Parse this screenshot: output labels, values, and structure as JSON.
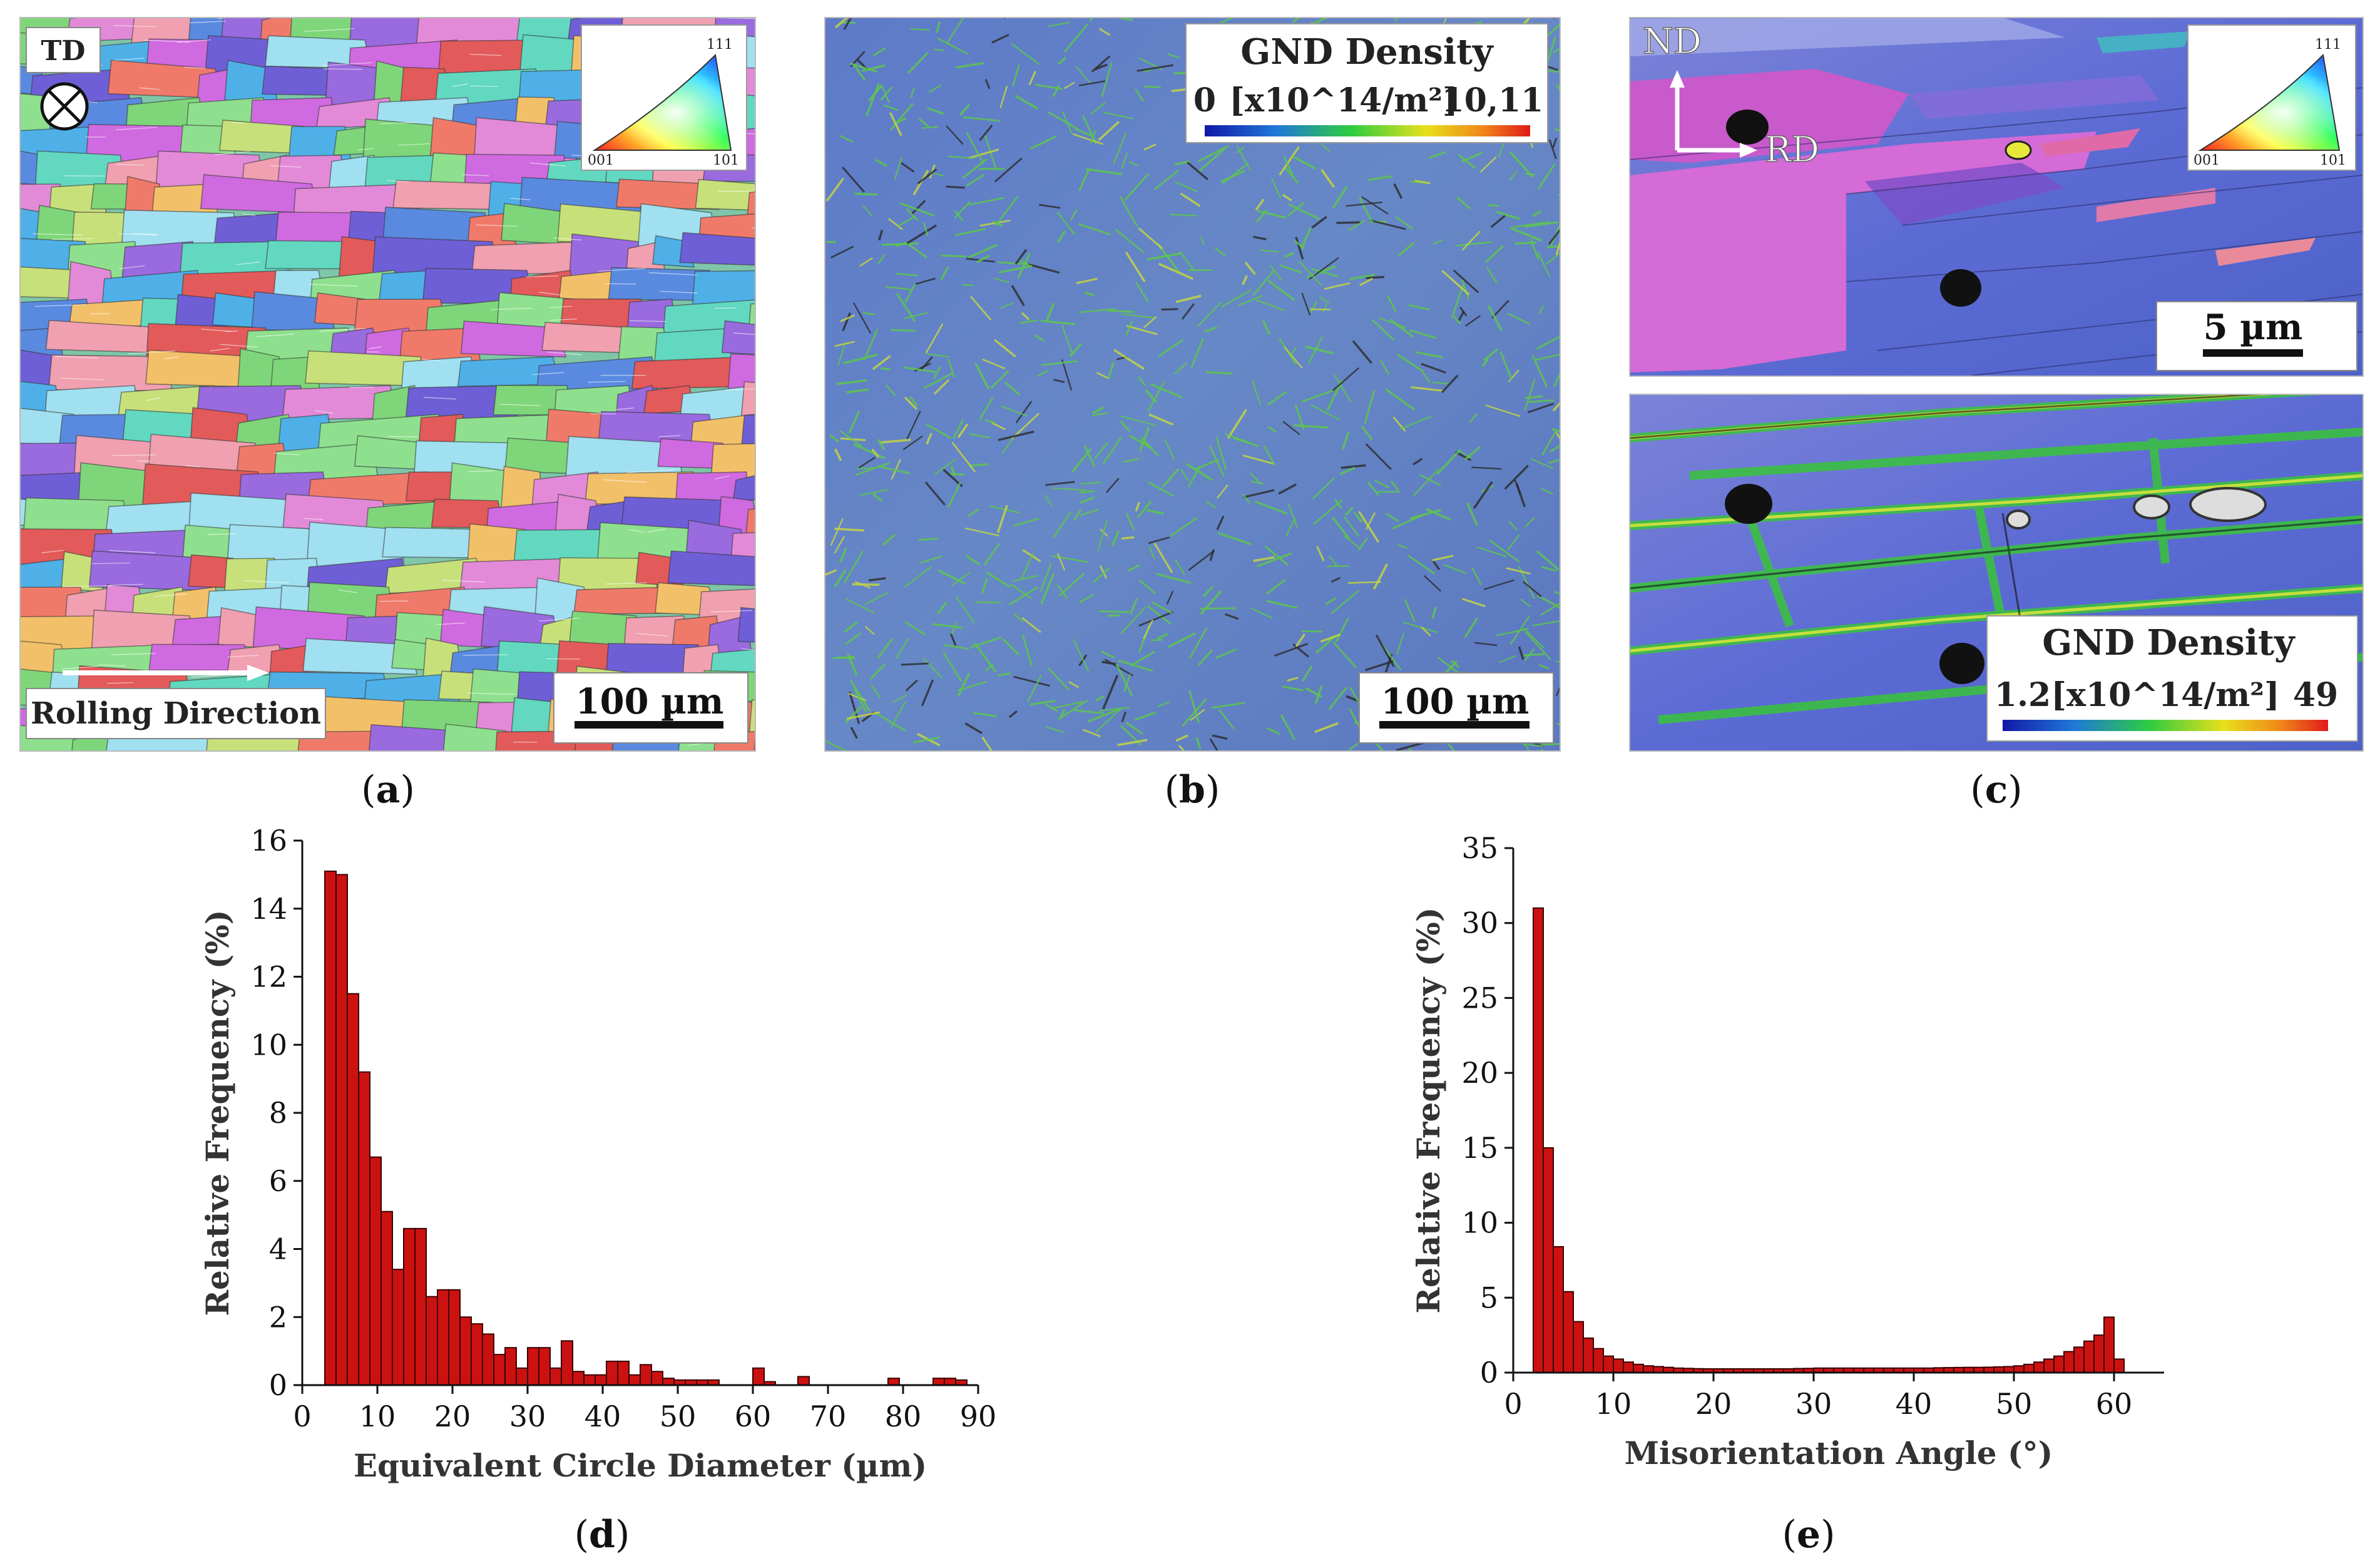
{
  "panels": {
    "a": {
      "caption_letter": "a",
      "td_label": "TD",
      "rolling_label": "Rolling Direction",
      "scale_label": "100 µm",
      "ipf_legend": {
        "top": "111",
        "left": "001",
        "right": "101"
      }
    },
    "b": {
      "caption_letter": "b",
      "legend_title": "GND Density",
      "legend_min": "0",
      "legend_unit": "[x10^14/m²]",
      "legend_max": "10,11",
      "scale_label": "100 µm"
    },
    "c": {
      "caption_letter": "c",
      "nd_label": "ND",
      "rd_label": "RD",
      "scale_label": "5 µm",
      "ipf_legend": {
        "top": "111",
        "left": "001",
        "right": "101"
      },
      "legend_title": "GND Density",
      "legend_min": "1.2",
      "legend_unit": "[x10^14/m²]",
      "legend_max": "49"
    },
    "d": {
      "caption_letter": "d"
    },
    "e": {
      "caption_letter": "e"
    }
  },
  "colors": {
    "bar_fill": "#cc1111",
    "bar_stroke": "#3a0000",
    "gnd_low": "#1530b0",
    "gnd_mid": "#33cc33",
    "gnd_high": "#e61c1c",
    "map_base_blue": "#5a6cd6"
  },
  "chart_data": [
    {
      "type": "bar",
      "id": "d",
      "title": "",
      "xlabel": "Equivalent Circle Diameter (µm)",
      "ylabel": "Relative Frequency (%)",
      "xlim": [
        0,
        90
      ],
      "ylim": [
        0,
        16
      ],
      "xticks": [
        0,
        10,
        20,
        30,
        40,
        50,
        60,
        70,
        80,
        90
      ],
      "yticks": [
        0,
        2,
        4,
        6,
        8,
        10,
        12,
        14,
        16
      ],
      "bin_width": 1.5,
      "x": [
        3.75,
        5.25,
        6.75,
        8.25,
        9.75,
        11.25,
        12.75,
        14.25,
        15.75,
        17.25,
        18.75,
        20.25,
        21.75,
        23.25,
        24.75,
        26.25,
        27.75,
        29.25,
        30.75,
        32.25,
        33.75,
        35.25,
        36.75,
        38.25,
        39.75,
        41.25,
        42.75,
        44.25,
        45.75,
        47.25,
        48.75,
        50.25,
        51.75,
        53.25,
        54.75,
        56.25,
        57.75,
        59.25,
        60.75,
        62.25,
        63.75,
        65.25,
        66.75,
        68.25,
        69.75,
        71.25,
        72.75,
        74.25,
        75.75,
        77.25,
        78.75,
        80.25,
        81.75,
        83.25,
        84.75,
        86.25,
        87.75
      ],
      "values": [
        15.1,
        15.0,
        11.5,
        9.2,
        6.7,
        5.1,
        3.4,
        4.6,
        4.6,
        2.6,
        2.8,
        2.8,
        2.0,
        1.8,
        1.5,
        0.9,
        1.1,
        0.5,
        1.1,
        1.1,
        0.5,
        1.3,
        0.4,
        0.3,
        0.3,
        0.7,
        0.7,
        0.3,
        0.6,
        0.4,
        0.2,
        0.15,
        0.15,
        0.15,
        0.15,
        0.0,
        0.0,
        0.0,
        0.5,
        0.1,
        0.0,
        0.0,
        0.25,
        0.0,
        0.0,
        0.0,
        0.0,
        0.0,
        0.0,
        0.0,
        0.2,
        0.0,
        0.0,
        0.0,
        0.2,
        0.2,
        0.15
      ]
    },
    {
      "type": "bar",
      "id": "e",
      "title": "",
      "xlabel": "Misorientation Angle (°)",
      "ylabel": "Relative Frequency (%)",
      "xlim": [
        0,
        65
      ],
      "ylim": [
        0,
        35
      ],
      "xticks": [
        0,
        10,
        20,
        30,
        40,
        50,
        60
      ],
      "yticks": [
        0,
        5,
        10,
        15,
        20,
        25,
        30,
        35
      ],
      "bin_width": 1,
      "x": [
        2.5,
        3.5,
        4.5,
        5.5,
        6.5,
        7.5,
        8.5,
        9.5,
        10.5,
        11.5,
        12.5,
        13.5,
        14.5,
        15.5,
        16.5,
        17.5,
        18.5,
        19.5,
        20.5,
        21.5,
        22.5,
        23.5,
        24.5,
        25.5,
        26.5,
        27.5,
        28.5,
        29.5,
        30.5,
        31.5,
        32.5,
        33.5,
        34.5,
        35.5,
        36.5,
        37.5,
        38.5,
        39.5,
        40.5,
        41.5,
        42.5,
        43.5,
        44.5,
        45.5,
        46.5,
        47.5,
        48.5,
        49.5,
        50.5,
        51.5,
        52.5,
        53.5,
        54.5,
        55.5,
        56.5,
        57.5,
        58.5,
        59.5,
        60.5
      ],
      "values": [
        31.0,
        15.0,
        8.4,
        5.4,
        3.4,
        2.3,
        1.6,
        1.1,
        0.9,
        0.7,
        0.55,
        0.45,
        0.4,
        0.35,
        0.3,
        0.28,
        0.26,
        0.25,
        0.25,
        0.25,
        0.25,
        0.25,
        0.25,
        0.25,
        0.25,
        0.25,
        0.27,
        0.28,
        0.3,
        0.3,
        0.3,
        0.3,
        0.3,
        0.3,
        0.3,
        0.3,
        0.3,
        0.3,
        0.3,
        0.3,
        0.32,
        0.33,
        0.34,
        0.35,
        0.35,
        0.36,
        0.38,
        0.4,
        0.45,
        0.55,
        0.7,
        0.9,
        1.1,
        1.4,
        1.7,
        2.1,
        2.5,
        3.7,
        0.9
      ]
    }
  ]
}
